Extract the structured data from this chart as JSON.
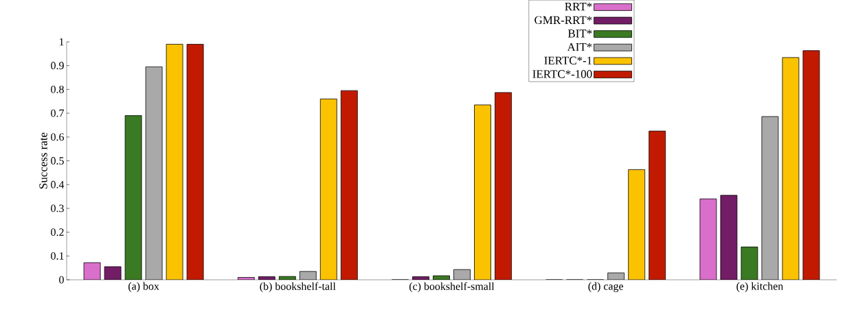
{
  "chart_data": {
    "type": "bar",
    "ylabel": "Success rate",
    "categories": [
      "(a) box",
      "(b) bookshelf-tall",
      "(c) bookshelf-small",
      "(d) cage",
      "(e) kitchen"
    ],
    "series": [
      {
        "name": "RRT*",
        "color": "#d96fcb",
        "values": [
          0.072,
          0.01,
          0,
          0,
          0.34
        ]
      },
      {
        "name": "GMR-RRT*",
        "color": "#721d66",
        "values": [
          0.055,
          0.013,
          0.013,
          0,
          0.355
        ]
      },
      {
        "name": "BIT*",
        "color": "#3a7a22",
        "values": [
          0.69,
          0.014,
          0.017,
          0,
          0.138
        ]
      },
      {
        "name": "AIT*",
        "color": "#a9a9a9",
        "values": [
          0.895,
          0.035,
          0.043,
          0.029,
          0.686
        ]
      },
      {
        "name": "IERTC*-1",
        "color": "#fbc200",
        "values": [
          0.99,
          0.76,
          0.735,
          0.463,
          0.934
        ]
      },
      {
        "name": "IERTC*-100",
        "color": "#c21a00",
        "values": [
          0.99,
          0.795,
          0.787,
          0.625,
          0.963
        ]
      }
    ],
    "ylim": [
      0,
      1
    ],
    "yticks": [
      0,
      0.1,
      0.2,
      0.3,
      0.4,
      0.5,
      0.6,
      0.7,
      0.8,
      0.9,
      1
    ],
    "grid": false,
    "legend": "top right"
  }
}
